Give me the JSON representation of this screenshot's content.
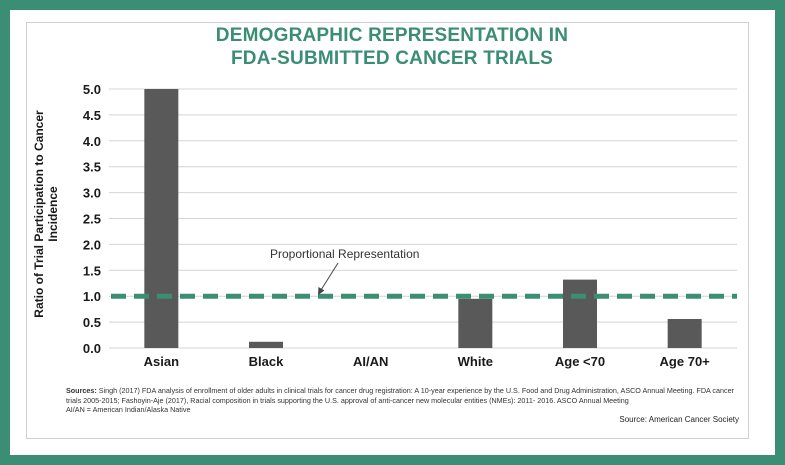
{
  "header": {
    "title_line1": "DEMOGRAPHIC REPRESENTATION IN",
    "title_line2": "FDA-SUBMITTED CANCER TRIALS"
  },
  "chart_data": {
    "type": "bar",
    "categories": [
      "Asian",
      "Black",
      "AI/AN",
      "White",
      "Age <70",
      "Age 70+"
    ],
    "values": [
      5.0,
      0.12,
      0.0,
      0.95,
      1.32,
      0.56
    ],
    "ylabel": "Ratio of Trial Participation to Cancer Incidence",
    "xlabel": "",
    "ylim": [
      0,
      5.0
    ],
    "yticks": [
      "0.0",
      "0.5",
      "1.0",
      "1.5",
      "2.0",
      "2.5",
      "3.0",
      "3.5",
      "4.0",
      "4.5",
      "5.0"
    ],
    "grid": true,
    "reference_line": {
      "value": 1.0,
      "label": "Proportional Representation"
    },
    "colors": {
      "bar": "#595959",
      "reference": "#3b8d73",
      "grid": "#d4d4d4"
    }
  },
  "footer": {
    "sources_label": "Sources:",
    "sources_text": "Singh (2017) FDA analysis of enrollment of older adults in clinical trials for cancer drug registration: A 10-year experience by the U.S. Food and Drug Administration, ASCO Annual Meeting.  FDA cancer trials 2005-2015; Fashoyin-Aje (2017), Racial composition in trials supporting the U.S. approval of anti-cancer new molecular entities (NMEs): 2011- 2016. ASCO Annual Meeting",
    "abbreviation": "AI/AN = American Indian/Alaska Native",
    "credit": "Source: American Cancer Society"
  },
  "theme": {
    "frame": "#3b8d73",
    "title": "#3b8d73"
  }
}
